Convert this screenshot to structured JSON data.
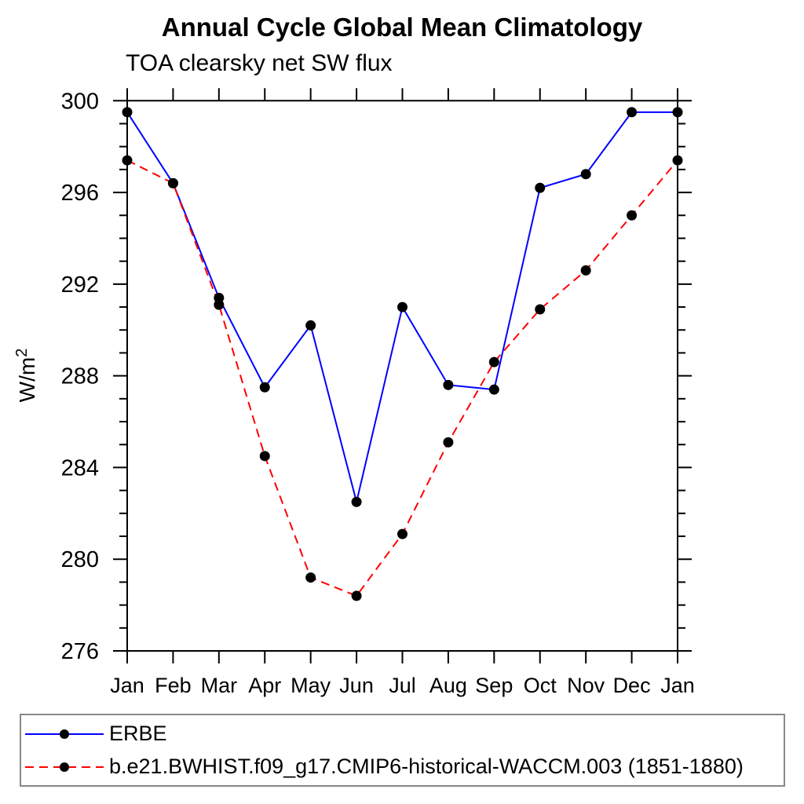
{
  "chart": {
    "title": "Annual Cycle Global Mean Climatology",
    "subtitle": "TOA clearsky net SW flux"
  },
  "chart_data": {
    "type": "line",
    "title": "Annual Cycle Global Mean Climatology",
    "subtitle": "TOA clearsky net SW flux",
    "ylabel": "W/m²",
    "ylabel_base": "W/m",
    "ylabel_exp": "2",
    "xlabel": "",
    "categories": [
      "Jan",
      "Feb",
      "Mar",
      "Apr",
      "May",
      "Jun",
      "Jul",
      "Aug",
      "Sep",
      "Oct",
      "Nov",
      "Dec",
      "Jan"
    ],
    "ylim": [
      276,
      300
    ],
    "yticks_major": [
      276,
      280,
      284,
      288,
      292,
      296,
      300
    ],
    "ytick_minor_step": 1,
    "grid": false,
    "legend_position": "bottom",
    "series": [
      {
        "name": "ERBE",
        "color": "#0000ff",
        "style": "solid",
        "marker": "circle",
        "marker_color": "#000000",
        "values": [
          299.5,
          296.4,
          291.4,
          287.5,
          290.2,
          282.5,
          291.0,
          287.6,
          287.4,
          296.2,
          296.8,
          299.5,
          299.5
        ]
      },
      {
        "name": "b.e21.BWHIST.f09_g17.CMIP6-historical-WACCM.003 (1851-1880)",
        "color": "#ff0000",
        "style": "dashed",
        "marker": "circle",
        "marker_color": "#000000",
        "values": [
          297.4,
          296.4,
          291.1,
          284.5,
          279.2,
          278.4,
          281.1,
          285.1,
          288.6,
          290.9,
          292.6,
          295.0,
          297.4
        ]
      }
    ]
  }
}
